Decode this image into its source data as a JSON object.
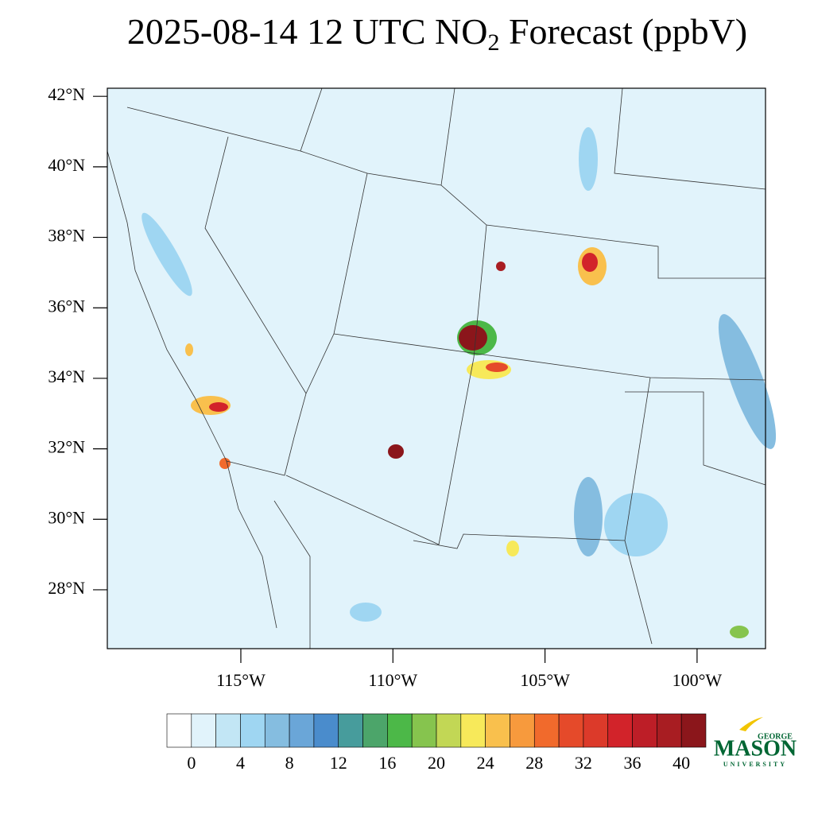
{
  "header": {
    "title_main": "2025-08-14 12 UTC NO",
    "title_subscript": "2",
    "title_suffix": " Forecast (ppbV)"
  },
  "map": {
    "lat_range": [
      26.33,
      42.23
    ],
    "lon_range": [
      -119.39,
      -97.75
    ],
    "lat_ticks": [
      {
        "value": 42,
        "label": "42°N"
      },
      {
        "value": 40,
        "label": "40°N"
      },
      {
        "value": 38,
        "label": "38°N"
      },
      {
        "value": 36,
        "label": "36°N"
      },
      {
        "value": 34,
        "label": "34°N"
      },
      {
        "value": 32,
        "label": "32°N"
      },
      {
        "value": 30,
        "label": "30°N"
      },
      {
        "value": 28,
        "label": "28°N"
      }
    ],
    "lon_ticks": [
      {
        "value": -115,
        "label": "115°W"
      },
      {
        "value": -110,
        "label": "110°W"
      },
      {
        "value": -105,
        "label": "105°W"
      },
      {
        "value": -100,
        "label": "100°W"
      }
    ]
  },
  "colorbar": {
    "colors": [
      "#ffffff",
      "#e1f3fb",
      "#c2e6f5",
      "#9fd6f2",
      "#85bde0",
      "#6aa6d8",
      "#4a8ccc",
      "#479c9c",
      "#4ca56a",
      "#4cb848",
      "#86c44e",
      "#c2d755",
      "#f7e95a",
      "#f9c04d",
      "#f79a3d",
      "#f16a2c",
      "#e54a2a",
      "#dc3a2a",
      "#d2232a",
      "#bd1e27",
      "#a81d22",
      "#8b161b"
    ],
    "ticks": [
      0,
      4,
      8,
      12,
      16,
      20,
      24,
      28,
      32,
      36,
      40
    ]
  },
  "logo": {
    "top": "GEORGE",
    "main": "MASON",
    "bottom": "UNIVERSITY"
  }
}
